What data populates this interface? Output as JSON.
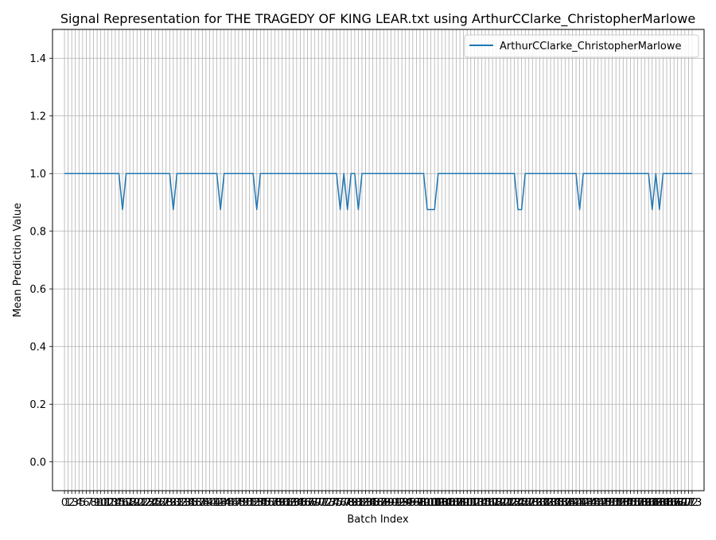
{
  "chart_data": {
    "type": "line",
    "title": "Signal Representation for THE TRAGEDY OF KING LEAR.txt using ArthurCClarke_ChristopherMarlowe",
    "xlabel": "Batch Index",
    "ylabel": "Mean Prediction Value",
    "xlim": [
      -3.3,
      176.3
    ],
    "ylim": [
      -0.1,
      1.5
    ],
    "yticks": [
      "0.0",
      "0.2",
      "0.4",
      "0.6",
      "0.8",
      "1.0",
      "1.2",
      "1.4"
    ],
    "xtick_labels": [
      "0",
      "1",
      "2",
      "3",
      "4",
      "5",
      "6",
      "7",
      "8",
      "9",
      "10",
      "11",
      "12",
      "13",
      "14",
      "15",
      "16",
      "17",
      "18",
      "19",
      "20",
      "21",
      "22",
      "23",
      "24",
      "25",
      "26",
      "27",
      "28",
      "29",
      "30",
      "31",
      "32",
      "33",
      "34",
      "35",
      "36",
      "37",
      "38",
      "39",
      "40",
      "41",
      "42",
      "43",
      "44",
      "45",
      "46",
      "47",
      "48",
      "49",
      "50",
      "51",
      "52",
      "53",
      "54",
      "55",
      "56",
      "57",
      "58",
      "59",
      "60",
      "61",
      "62",
      "63",
      "64",
      "65",
      "66",
      "67",
      "68",
      "69",
      "70",
      "71",
      "72",
      "73",
      "74",
      "75",
      "76",
      "77",
      "78",
      "79",
      "80",
      "81",
      "82",
      "83",
      "84",
      "85",
      "86",
      "87",
      "88",
      "89",
      "90",
      "91",
      "92",
      "93",
      "94",
      "95",
      "96",
      "97",
      "98",
      "99",
      "100",
      "101",
      "102",
      "103",
      "104",
      "105",
      "106",
      "107",
      "108",
      "109",
      "110",
      "111",
      "112",
      "113",
      "114",
      "115",
      "116",
      "117",
      "118",
      "119",
      "120",
      "121",
      "122",
      "123",
      "124",
      "125",
      "126",
      "127",
      "128",
      "129",
      "130",
      "131",
      "132",
      "133",
      "134",
      "135",
      "136",
      "137",
      "138",
      "139",
      "140",
      "141",
      "142",
      "143",
      "144",
      "145",
      "146",
      "147",
      "148",
      "149",
      "150",
      "151",
      "152",
      "153",
      "154",
      "155",
      "156",
      "157",
      "158",
      "159",
      "160",
      "161",
      "162",
      "163",
      "164",
      "165",
      "166",
      "167",
      "168",
      "169",
      "170",
      "171",
      "172",
      "173"
    ],
    "grid": true,
    "legend_position": "top-right",
    "series": [
      {
        "name": "ArthurCClarke_ChristopherMarlowe",
        "color": "#1f77b4",
        "values": [
          1.0,
          1.0,
          1.0,
          1.0,
          1.0,
          1.0,
          1.0,
          1.0,
          1.0,
          1.0,
          1.0,
          1.0,
          1.0,
          1.0,
          1.0,
          1.0,
          0.875,
          1.0,
          1.0,
          1.0,
          1.0,
          1.0,
          1.0,
          1.0,
          1.0,
          1.0,
          1.0,
          1.0,
          1.0,
          1.0,
          0.875,
          1.0,
          1.0,
          1.0,
          1.0,
          1.0,
          1.0,
          1.0,
          1.0,
          1.0,
          1.0,
          1.0,
          1.0,
          0.875,
          1.0,
          1.0,
          1.0,
          1.0,
          1.0,
          1.0,
          1.0,
          1.0,
          1.0,
          0.875,
          1.0,
          1.0,
          1.0,
          1.0,
          1.0,
          1.0,
          1.0,
          1.0,
          1.0,
          1.0,
          1.0,
          1.0,
          1.0,
          1.0,
          1.0,
          1.0,
          1.0,
          1.0,
          1.0,
          1.0,
          1.0,
          1.0,
          0.875,
          1.0,
          0.875,
          1.0,
          1.0,
          0.875,
          1.0,
          1.0,
          1.0,
          1.0,
          1.0,
          1.0,
          1.0,
          1.0,
          1.0,
          1.0,
          1.0,
          1.0,
          1.0,
          1.0,
          1.0,
          1.0,
          1.0,
          1.0,
          0.875,
          0.875,
          0.875,
          1.0,
          1.0,
          1.0,
          1.0,
          1.0,
          1.0,
          1.0,
          1.0,
          1.0,
          1.0,
          1.0,
          1.0,
          1.0,
          1.0,
          1.0,
          1.0,
          1.0,
          1.0,
          1.0,
          1.0,
          1.0,
          1.0,
          0.875,
          0.875,
          1.0,
          1.0,
          1.0,
          1.0,
          1.0,
          1.0,
          1.0,
          1.0,
          1.0,
          1.0,
          1.0,
          1.0,
          1.0,
          1.0,
          1.0,
          0.875,
          1.0,
          1.0,
          1.0,
          1.0,
          1.0,
          1.0,
          1.0,
          1.0,
          1.0,
          1.0,
          1.0,
          1.0,
          1.0,
          1.0,
          1.0,
          1.0,
          1.0,
          1.0,
          1.0,
          0.875,
          1.0,
          0.875,
          1.0,
          1.0,
          1.0,
          1.0,
          1.0,
          1.0,
          1.0,
          1.0,
          1.0
        ]
      }
    ]
  }
}
